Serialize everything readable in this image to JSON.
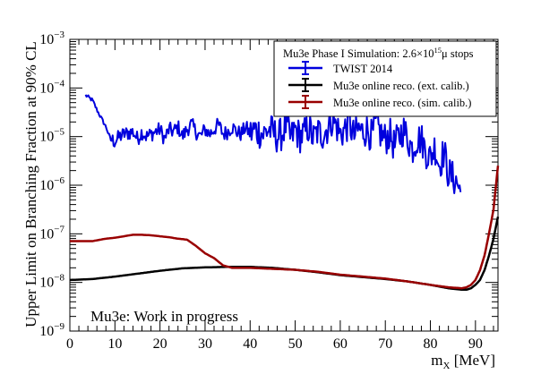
{
  "chart_data": {
    "type": "line",
    "title": "",
    "xlabel": "m_X [MeV]",
    "ylabel": "Upper Limit on Branching Fraction at 90% CL",
    "xlim": [
      0,
      95
    ],
    "ylim_log10": [
      -9,
      -3
    ],
    "y_scale": "log",
    "x_ticks": [
      "0",
      "10",
      "20",
      "30",
      "40",
      "50",
      "60",
      "70",
      "80",
      "90"
    ],
    "x_tick_values": [
      0,
      10,
      20,
      30,
      40,
      50,
      60,
      70,
      80,
      90
    ],
    "y_tick_values_log10": [
      -9,
      -8,
      -7,
      -6,
      -5,
      -4,
      -3
    ],
    "y_tick_base": "10",
    "legend": {
      "title_prefix": "Mu3e Phase I Simulation: 2.6×10",
      "title_exp": "15",
      "title_suffix": "μ stops",
      "placement": "top-right"
    },
    "annotation": "Mu3e: Work in progress",
    "series": [
      {
        "name": "TWIST 2014",
        "color": "#0000dd",
        "style": "noisy",
        "x": [
          3.5,
          5,
          6,
          8,
          9,
          10,
          11,
          12,
          14,
          15,
          16,
          17,
          18,
          19,
          20,
          21,
          22,
          23,
          24,
          25,
          26,
          27,
          28,
          29,
          30,
          31,
          32,
          33,
          34,
          35,
          36,
          37,
          38,
          39,
          40,
          41,
          42,
          43,
          44,
          45,
          46,
          47,
          48,
          49,
          50,
          51,
          52,
          53,
          54,
          55,
          56,
          57,
          58,
          59,
          60,
          61,
          62,
          63,
          64,
          65,
          66,
          67,
          68,
          69,
          70,
          71,
          72,
          73,
          74,
          75,
          76,
          77,
          78,
          79,
          80,
          81,
          82,
          83,
          84,
          85,
          86,
          86.8
        ],
        "log10_values": [
          -4.15,
          -4.25,
          -4.45,
          -4.8,
          -5.05,
          -5.1,
          -5.0,
          -4.95,
          -4.9,
          -5.05,
          -4.9,
          -5.0,
          -4.95,
          -4.9,
          -4.85,
          -5.05,
          -4.85,
          -4.9,
          -4.8,
          -5.0,
          -4.85,
          -4.75,
          -4.9,
          -5.0,
          -4.85,
          -4.95,
          -4.85,
          -4.75,
          -4.95,
          -4.9,
          -4.8,
          -4.9,
          -4.95,
          -4.8,
          -4.95,
          -4.85,
          -4.9,
          -4.95,
          -4.85,
          -4.9,
          -5.0,
          -4.95,
          -4.75,
          -5.05,
          -4.85,
          -5.0,
          -4.95,
          -4.8,
          -5.05,
          -4.9,
          -4.95,
          -4.85,
          -4.65,
          -4.75,
          -4.95,
          -4.85,
          -4.7,
          -5.0,
          -4.85,
          -4.9,
          -4.85,
          -5.0,
          -4.75,
          -4.95,
          -5.05,
          -4.95,
          -5.2,
          -5.0,
          -4.85,
          -5.05,
          -5.25,
          -5.05,
          -5.05,
          -5.3,
          -5.45,
          -5.2,
          -5.6,
          -5.3,
          -5.75,
          -5.85,
          -5.95,
          -6.2
        ],
        "noise_amplitude_log10": 0.35
      },
      {
        "name": "Mu3e online reco. (ext. calib.)",
        "color": "#000000",
        "style": "smooth",
        "x": [
          0,
          5,
          10,
          15,
          20,
          25,
          30,
          35,
          40,
          45,
          50,
          55,
          60,
          65,
          70,
          75,
          80,
          84,
          87,
          88,
          89,
          90,
          91,
          92,
          93,
          94,
          95
        ],
        "log10_values": [
          -7.95,
          -7.93,
          -7.88,
          -7.82,
          -7.76,
          -7.71,
          -7.69,
          -7.68,
          -7.68,
          -7.7,
          -7.74,
          -7.79,
          -7.85,
          -7.89,
          -7.93,
          -7.98,
          -8.05,
          -8.12,
          -8.15,
          -8.15,
          -8.12,
          -8.05,
          -7.95,
          -7.75,
          -7.45,
          -7.1,
          -6.65
        ]
      },
      {
        "name": "Mu3e online reco. (sim. calib.)",
        "color": "#990000",
        "style": "smooth",
        "x": [
          0,
          5,
          8,
          10,
          12,
          14,
          16,
          18,
          20,
          22,
          24,
          26,
          28,
          30,
          32,
          34,
          36,
          38,
          40,
          45,
          50,
          55,
          60,
          65,
          70,
          75,
          80,
          84,
          87,
          88,
          89,
          90,
          91,
          92,
          93,
          94,
          95
        ],
        "log10_values": [
          -7.15,
          -7.15,
          -7.1,
          -7.08,
          -7.05,
          -7.02,
          -7.02,
          -7.03,
          -7.05,
          -7.07,
          -7.1,
          -7.12,
          -7.25,
          -7.4,
          -7.5,
          -7.65,
          -7.7,
          -7.7,
          -7.7,
          -7.72,
          -7.74,
          -7.78,
          -7.84,
          -7.88,
          -7.92,
          -7.98,
          -8.05,
          -8.1,
          -8.12,
          -8.1,
          -8.05,
          -7.95,
          -7.75,
          -7.45,
          -7.0,
          -6.5,
          -5.6
        ]
      }
    ]
  }
}
